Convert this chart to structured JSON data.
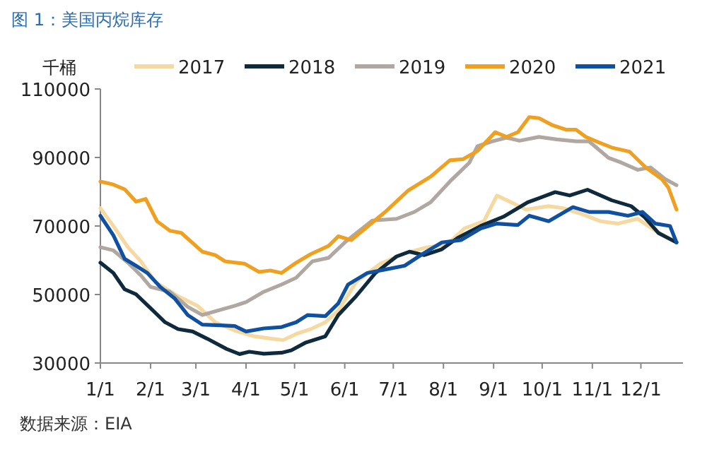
{
  "chart_data": {
    "type": "line",
    "title": "图 1：美国丙烷库存",
    "ylabel": "千桶",
    "annotations": [
      "数据来源：EIA"
    ],
    "xlim": [
      "--01-01",
      "--12-27"
    ],
    "xticks": [
      {
        "value": "--01-01",
        "label": "1/1"
      },
      {
        "value": "--02-01",
        "label": "2/1"
      },
      {
        "value": "--03-01",
        "label": "3/1"
      },
      {
        "value": "--04-01",
        "label": "4/1"
      },
      {
        "value": "--05-01",
        "label": "5/1"
      },
      {
        "value": "--06-01",
        "label": "6/1"
      },
      {
        "value": "--07-01",
        "label": "7/1"
      },
      {
        "value": "--08-01",
        "label": "8/1"
      },
      {
        "value": "--09-01",
        "label": "9/1"
      },
      {
        "value": "--10-01",
        "label": "10/1"
      },
      {
        "value": "--11-01",
        "label": "11/1"
      },
      {
        "value": "--12-01",
        "label": "12/1"
      }
    ],
    "ylim": [
      30000,
      110000
    ],
    "yticks": [
      30000,
      50000,
      70000,
      90000,
      110000
    ],
    "grid": false,
    "legend": "top",
    "marker": "none",
    "line_style": "solid",
    "series": [
      {
        "name": "2017",
        "color": "#f5d9a0",
        "x": [
          "--01-01",
          "--01-09",
          "--01-18",
          "--01-26",
          "--02-04",
          "--02-18",
          "--03-02",
          "--03-13",
          "--03-25",
          "--04-06",
          "--04-17",
          "--04-24",
          "--05-02",
          "--05-11",
          "--05-20",
          "--05-28",
          "--06-08",
          "--06-23",
          "--07-08",
          "--07-22",
          "--08-03",
          "--08-14",
          "--08-26",
          "--09-03",
          "--09-12",
          "--09-21",
          "--10-05",
          "--10-14",
          "--10-26",
          "--11-06",
          "--11-17",
          "--11-29",
          "--12-10",
          "--12-23"
        ],
        "values": [
          75200,
          70000,
          63800,
          59700,
          53600,
          49500,
          46700,
          41900,
          39500,
          37800,
          37100,
          36700,
          38500,
          39900,
          41900,
          45300,
          53600,
          59000,
          62000,
          63800,
          64500,
          69300,
          71400,
          78900,
          76900,
          74800,
          75800,
          75200,
          73400,
          71400,
          70700,
          72100,
          68600,
          65200
        ]
      },
      {
        "name": "2018",
        "color": "#0f2a3c",
        "x": [
          "--01-01",
          "--01-09",
          "--01-16",
          "--01-23",
          "--02-01",
          "--02-10",
          "--02-18",
          "--02-27",
          "--03-08",
          "--03-20",
          "--03-28",
          "--04-03",
          "--04-12",
          "--04-23",
          "--04-29",
          "--05-08",
          "--05-20",
          "--05-28",
          "--06-08",
          "--06-20",
          "--07-03",
          "--07-11",
          "--07-20",
          "--07-31",
          "--08-10",
          "--08-24",
          "--09-07",
          "--09-22",
          "--10-09",
          "--10-18",
          "--10-29",
          "--11-13",
          "--11-25",
          "--12-03",
          "--12-12",
          "--12-23"
        ],
        "values": [
          59300,
          56300,
          51500,
          50100,
          46000,
          41900,
          39900,
          39200,
          37100,
          34100,
          32600,
          33300,
          32700,
          33000,
          33700,
          36000,
          37800,
          44000,
          49500,
          56300,
          61100,
          62500,
          61500,
          63200,
          66600,
          70000,
          72700,
          76900,
          79900,
          78900,
          80600,
          77500,
          75800,
          72700,
          67900,
          65200
        ]
      },
      {
        "name": "2019",
        "color": "#b0a8a0",
        "x": [
          "--01-01",
          "--01-09",
          "--01-18",
          "--01-26",
          "--02-01",
          "--02-13",
          "--02-24",
          "--03-05",
          "--03-13",
          "--03-25",
          "--04-01",
          "--04-12",
          "--04-23",
          "--05-02",
          "--05-12",
          "--05-22",
          "--06-01",
          "--06-18",
          "--07-03",
          "--07-14",
          "--07-24",
          "--08-05",
          "--08-17",
          "--08-22",
          "--08-31",
          "--09-09",
          "--09-17",
          "--09-29",
          "--10-10",
          "--10-22",
          "--10-30",
          "--11-11",
          "--11-19",
          "--11-29",
          "--12-07",
          "--12-16",
          "--12-23"
        ],
        "values": [
          63800,
          62900,
          59300,
          55600,
          52200,
          50800,
          46400,
          44000,
          45100,
          46700,
          47800,
          50800,
          52900,
          54900,
          59700,
          60700,
          65200,
          71600,
          72100,
          74100,
          76900,
          83000,
          88500,
          93300,
          94700,
          95800,
          94900,
          96000,
          95300,
          94700,
          94700,
          89900,
          88500,
          86400,
          87100,
          83700,
          81900
        ]
      },
      {
        "name": "2020",
        "color": "#f0a020",
        "x": [
          "--01-01",
          "--01-09",
          "--01-16",
          "--01-23",
          "--01-29",
          "--02-05",
          "--02-13",
          "--02-20",
          "--03-05",
          "--03-13",
          "--03-19",
          "--03-31",
          "--04-09",
          "--04-16",
          "--04-23",
          "--05-02",
          "--05-11",
          "--05-22",
          "--05-28",
          "--06-05",
          "--06-26",
          "--07-10",
          "--07-24",
          "--08-05",
          "--08-13",
          "--08-22",
          "--09-02",
          "--09-09",
          "--09-16",
          "--09-23",
          "--09-29",
          "--10-07",
          "--10-16",
          "--10-22",
          "--10-28",
          "--11-05",
          "--11-13",
          "--11-24",
          "--12-04",
          "--12-14",
          "--12-18",
          "--12-23"
        ],
        "values": [
          83000,
          82100,
          80700,
          77100,
          77900,
          71400,
          68600,
          68000,
          62500,
          61500,
          59700,
          59000,
          56600,
          57000,
          56300,
          59300,
          61800,
          64200,
          67000,
          65900,
          74100,
          80300,
          84400,
          89200,
          89500,
          91900,
          97400,
          96000,
          97400,
          101800,
          101500,
          99500,
          98100,
          98100,
          96000,
          94400,
          92900,
          91700,
          87100,
          83700,
          81200,
          74800
        ]
      },
      {
        "name": "2021",
        "color": "#1050a0",
        "x": [
          "--01-01",
          "--01-09",
          "--01-16",
          "--01-23",
          "--01-30",
          "--02-07",
          "--02-16",
          "--02-24",
          "--03-05",
          "--03-16",
          "--03-25",
          "--04-01",
          "--04-12",
          "--04-23",
          "--05-02",
          "--05-09",
          "--05-20",
          "--05-28",
          "--06-03",
          "--06-15",
          "--06-26",
          "--07-08",
          "--07-19",
          "--07-31",
          "--08-12",
          "--08-24",
          "--09-03",
          "--09-16",
          "--09-23",
          "--10-05",
          "--10-20",
          "--10-30",
          "--11-11",
          "--11-23",
          "--12-02",
          "--12-10",
          "--12-19",
          "--12-23"
        ],
        "values": [
          73000,
          67300,
          60400,
          58400,
          56300,
          52200,
          48800,
          44000,
          41200,
          41000,
          40800,
          39200,
          40100,
          40500,
          41900,
          44000,
          43700,
          47400,
          52900,
          56300,
          57300,
          58400,
          61800,
          65200,
          65900,
          69300,
          70700,
          70300,
          73000,
          71400,
          75500,
          74100,
          74100,
          73000,
          74100,
          70700,
          70000,
          65200
        ]
      }
    ]
  }
}
